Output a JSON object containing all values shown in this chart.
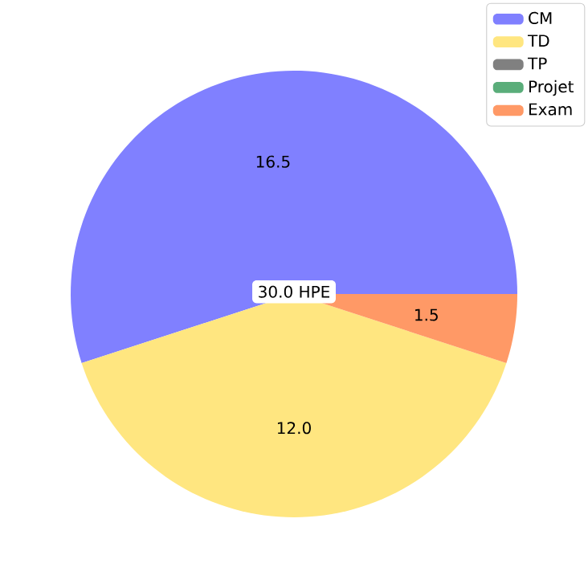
{
  "chart_data": {
    "type": "pie",
    "categories": [
      "CM",
      "TD",
      "TP",
      "Projet",
      "Exam"
    ],
    "values": [
      16.5,
      12.0,
      0,
      0,
      1.5
    ],
    "colors": [
      "#8080ff",
      "#ffe680",
      "#808080",
      "#5aad7a",
      "#ff9966"
    ],
    "value_labels": [
      "16.5",
      "12.0",
      null,
      null,
      "1.5"
    ],
    "annotations": [
      "30.0 HPE"
    ],
    "legend": "top right"
  }
}
